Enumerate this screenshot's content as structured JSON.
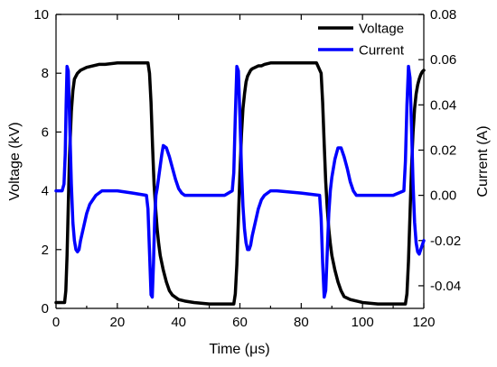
{
  "chart_data": {
    "type": "line",
    "xlabel": "Time (μs)",
    "ylabel_left": "Voltage (kV)",
    "ylabel_right": "Current (A)",
    "xlim": [
      0,
      120
    ],
    "ylim_left": [
      0,
      10
    ],
    "ylim_right": [
      -0.05,
      0.08
    ],
    "x_ticks": [
      0,
      20,
      40,
      60,
      80,
      100,
      120
    ],
    "y_left_ticks": [
      0,
      2,
      4,
      6,
      8,
      10
    ],
    "y_right_ticks": [
      -0.04,
      -0.02,
      0.0,
      0.02,
      0.04,
      0.06,
      0.08
    ],
    "y_right_tick_labels": [
      "-0.04",
      "-0.02",
      "0.00",
      "0.02",
      "0.04",
      "0.06",
      "0.08"
    ],
    "grid": false,
    "legend_position": "top-right",
    "series": [
      {
        "name": "Voltage",
        "axis": "left",
        "color": "#000000",
        "x": [
          0,
          1,
          2,
          2.8,
          3.2,
          3.6,
          4.0,
          4.4,
          5.0,
          5.5,
          6.0,
          7.0,
          8.0,
          9.0,
          10.0,
          12.0,
          14.0,
          16.0,
          20.0,
          25.0,
          30.0,
          30.5,
          31.0,
          31.5,
          32.0,
          32.5,
          33.0,
          33.5,
          34.0,
          35.0,
          36.0,
          37.0,
          38.0,
          40.0,
          42.0,
          45.0,
          50.0,
          55.0,
          58.0,
          58.5,
          59.0,
          59.5,
          60.0,
          60.5,
          61.0,
          61.5,
          62.0,
          62.5,
          63.0,
          63.5,
          64.0,
          65.0,
          66.0,
          67.0,
          68.0,
          70.0,
          75.0,
          80.0,
          85.0,
          86.5,
          87.0,
          87.5,
          88.0,
          88.5,
          89.0,
          89.5,
          90.0,
          91.0,
          92.0,
          93.0,
          94.0,
          96.0,
          98.0,
          100.0,
          105.0,
          110.0,
          114.0,
          114.5,
          115.0,
          115.5,
          116.0,
          116.5,
          117.0,
          117.5,
          118.0,
          118.5,
          119.0,
          119.5,
          120.0
        ],
        "y": [
          0.2,
          0.2,
          0.2,
          0.2,
          0.6,
          1.8,
          3.5,
          5.2,
          6.7,
          7.4,
          7.8,
          8.0,
          8.1,
          8.15,
          8.2,
          8.25,
          8.3,
          8.3,
          8.35,
          8.35,
          8.35,
          8.0,
          7.0,
          5.5,
          4.2,
          3.4,
          2.7,
          2.2,
          1.8,
          1.3,
          0.9,
          0.6,
          0.45,
          0.3,
          0.25,
          0.2,
          0.15,
          0.15,
          0.15,
          0.5,
          1.5,
          3.0,
          4.6,
          5.9,
          6.8,
          7.3,
          7.7,
          7.9,
          8.0,
          8.1,
          8.15,
          8.2,
          8.25,
          8.25,
          8.3,
          8.35,
          8.35,
          8.35,
          8.35,
          8.0,
          7.0,
          5.6,
          4.3,
          3.4,
          2.7,
          2.2,
          1.8,
          1.3,
          0.9,
          0.6,
          0.4,
          0.3,
          0.25,
          0.2,
          0.15,
          0.15,
          0.15,
          0.5,
          1.6,
          3.2,
          4.8,
          6.0,
          6.8,
          7.3,
          7.6,
          7.8,
          7.95,
          8.05,
          8.1
        ]
      },
      {
        "name": "Current",
        "axis": "right",
        "color": "#0000ff",
        "x": [
          0,
          2,
          2.6,
          3.0,
          3.3,
          3.6,
          4.0,
          4.5,
          5.0,
          5.5,
          6.0,
          6.5,
          7.0,
          7.5,
          8.0,
          9.0,
          10.0,
          11.0,
          12.0,
          13.0,
          14.0,
          15.0,
          20.0,
          25.0,
          29.5,
          30.0,
          30.5,
          31.0,
          31.4,
          31.8,
          32.2,
          32.6,
          33.0,
          33.5,
          34.0,
          34.5,
          35.0,
          36.0,
          37.0,
          38.0,
          39.0,
          40.0,
          41.0,
          42.0,
          43.0,
          44.0,
          50.0,
          55.0,
          57.5,
          58.0,
          58.5,
          59.0,
          59.5,
          60.0,
          60.5,
          61.0,
          61.5,
          62.0,
          62.5,
          63.0,
          63.5,
          64.0,
          65.0,
          66.0,
          67.0,
          68.0,
          69.0,
          70.0,
          72.0,
          80.0,
          86.0,
          86.5,
          87.0,
          87.5,
          88.0,
          88.5,
          89.0,
          89.5,
          90.0,
          91.0,
          92.0,
          93.0,
          94.0,
          95.0,
          96.0,
          97.0,
          98.0,
          99.0,
          105.0,
          110.0,
          113.5,
          114.0,
          114.5,
          115.0,
          115.5,
          116.0,
          116.5,
          117.0,
          117.5,
          118.0,
          118.5,
          119.0,
          119.5,
          120.0
        ],
        "y": [
          0.002,
          0.002,
          0.005,
          0.018,
          0.04,
          0.057,
          0.055,
          0.03,
          0.005,
          -0.012,
          -0.02,
          -0.024,
          -0.025,
          -0.024,
          -0.02,
          -0.014,
          -0.008,
          -0.004,
          -0.002,
          0.0,
          0.001,
          0.002,
          0.002,
          0.001,
          0.0,
          -0.006,
          -0.025,
          -0.044,
          -0.045,
          -0.03,
          -0.01,
          0.0,
          0.003,
          0.008,
          0.013,
          0.018,
          0.022,
          0.021,
          0.017,
          0.012,
          0.007,
          0.003,
          0.001,
          0.0,
          0.0,
          0.0,
          0.0,
          0.0,
          0.002,
          0.01,
          0.035,
          0.057,
          0.055,
          0.035,
          0.012,
          -0.005,
          -0.015,
          -0.021,
          -0.024,
          -0.024,
          -0.022,
          -0.018,
          -0.012,
          -0.006,
          -0.002,
          0.0,
          0.001,
          0.002,
          0.002,
          0.001,
          0.0,
          -0.01,
          -0.03,
          -0.045,
          -0.042,
          -0.025,
          -0.008,
          0.002,
          0.008,
          0.016,
          0.021,
          0.021,
          0.017,
          0.012,
          0.006,
          0.002,
          0.0,
          0.0,
          0.0,
          0.0,
          0.002,
          0.015,
          0.04,
          0.057,
          0.052,
          0.03,
          0.005,
          -0.012,
          -0.021,
          -0.025,
          -0.026,
          -0.024,
          -0.022,
          -0.02
        ]
      }
    ]
  }
}
